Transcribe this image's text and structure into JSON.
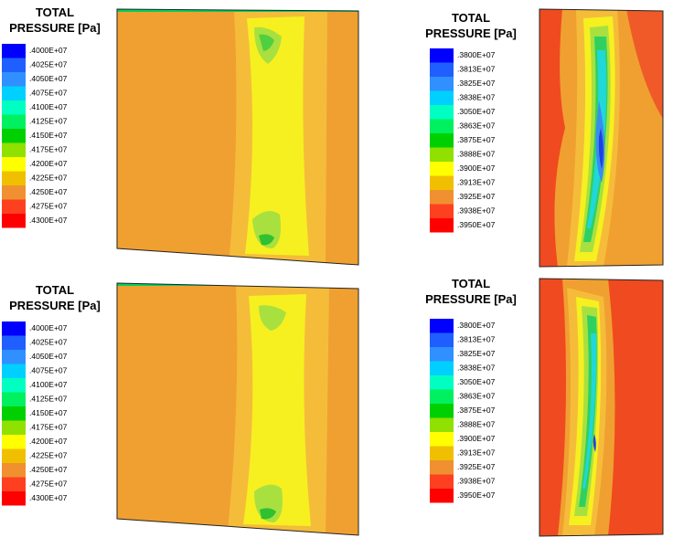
{
  "panels": [
    {
      "title": [
        "TOTAL",
        "PRESSURE [Pa]"
      ],
      "legend": [
        ".4000E+07",
        ".4025E+07",
        ".4050E+07",
        ".4075E+07",
        ".4100E+07",
        ".4125E+07",
        ".4150E+07",
        ".4175E+07",
        ".4200E+07",
        ".4225E+07",
        ".4250E+07",
        ".4275E+07",
        ".4300E+07"
      ]
    },
    {
      "title": [
        "TOTAL",
        "PRESSURE [Pa]"
      ],
      "legend": [
        ".3800E+07",
        ".3813E+07",
        ".3825E+07",
        ".3838E+07",
        ".3050E+07",
        ".3863E+07",
        ".3875E+07",
        ".3888E+07",
        ".3900E+07",
        ".3913E+07",
        ".3925E+07",
        ".3938E+07",
        ".3950E+07"
      ]
    },
    {
      "title": [
        "TOTAL",
        "PRESSURE [Pa]"
      ],
      "legend": [
        ".4000E+07",
        ".4025E+07",
        ".4050E+07",
        ".4075E+07",
        ".4100E+07",
        ".4125E+07",
        ".4150E+07",
        ".4175E+07",
        ".4200E+07",
        ".4225E+07",
        ".4250E+07",
        ".4275E+07",
        ".4300E+07"
      ]
    },
    {
      "title": [
        "TOTAL",
        "PRESSURE [Pa]"
      ],
      "legend": [
        ".3800E+07",
        ".3813E+07",
        ".3825E+07",
        ".3838E+07",
        ".3050E+07",
        ".3863E+07",
        ".3875E+07",
        ".3888E+07",
        ".3900E+07",
        ".3913E+07",
        ".3925E+07",
        ".3938E+07",
        ".3950E+07"
      ]
    }
  ]
}
